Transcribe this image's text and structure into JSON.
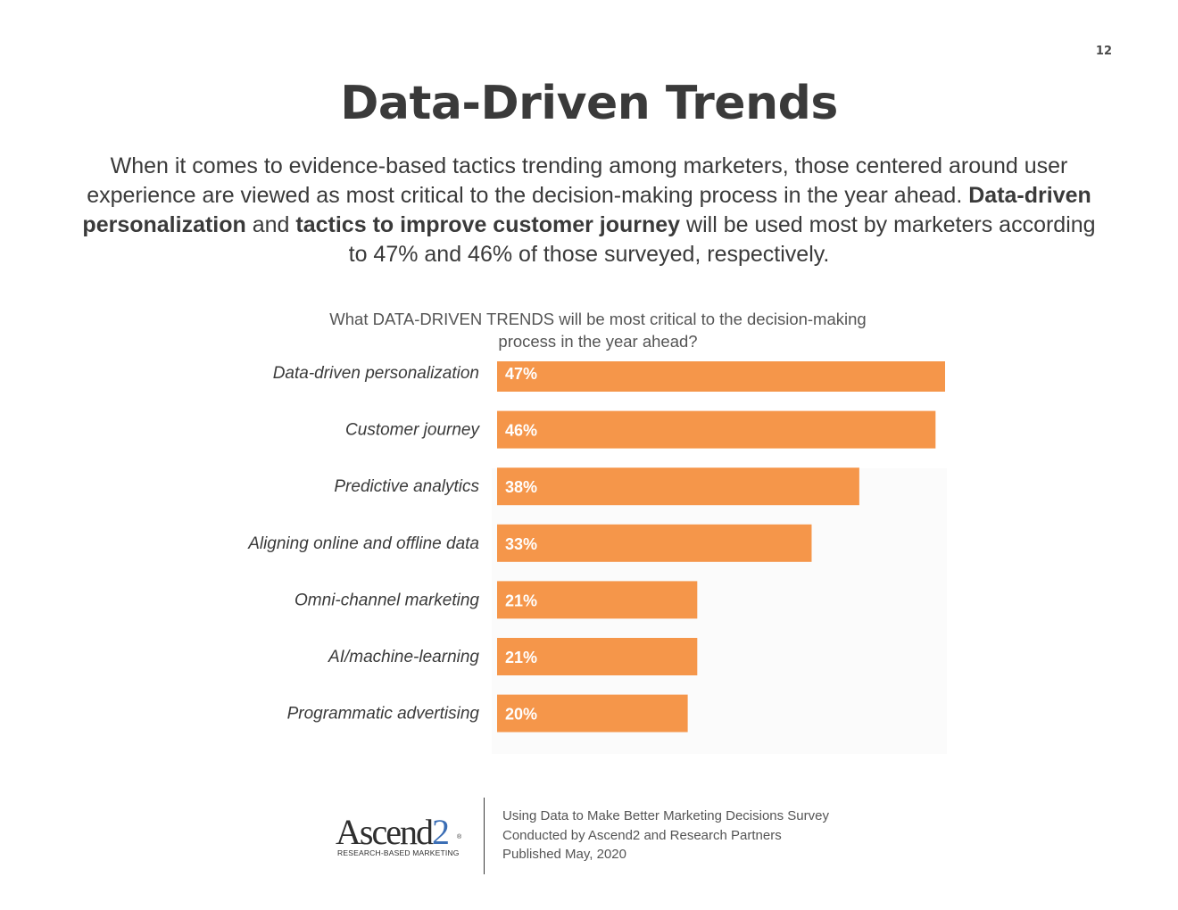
{
  "page": {
    "number": "12",
    "title": "Data-Driven Trends"
  },
  "intro": {
    "part1": "When it comes to evidence-based tactics trending among marketers, those centered around user experience are viewed as most critical to the decision-making process in the year ahead. ",
    "bold1": "Data-driven personalization",
    "part2": " and ",
    "bold2": "tactics to improve customer journey",
    "part3": " will be used most by marketers according to 47% and 46% of those surveyed, respectively."
  },
  "chart_data": {
    "type": "bar",
    "orientation": "horizontal",
    "title": "What DATA-DRIVEN TRENDS will be most critical to the decision-making process in the year ahead?",
    "categories": [
      "Data-driven personalization",
      "Customer journey",
      "Predictive analytics",
      "Aligning online and offline data",
      "Omni-channel marketing",
      "AI/machine-learning",
      "Programmatic advertising"
    ],
    "values": [
      47,
      46,
      38,
      33,
      21,
      21,
      20
    ],
    "value_labels": [
      "47%",
      "46%",
      "38%",
      "33%",
      "21%",
      "21%",
      "20%"
    ],
    "xlim": [
      0,
      47
    ],
    "bar_color": "#f5964a",
    "grid": false,
    "legend": "none"
  },
  "footer": {
    "logo_text": "Ascend2",
    "logo_mark": "®",
    "logo_tagline": "RESEARCH-BASED MARKETING",
    "line1": "Using Data to Make Better Marketing Decisions Survey",
    "line2": "Conducted  by Ascend2 and Research Partners",
    "line3": "Published May, 2020"
  },
  "colors": {
    "bar": "#f5964a",
    "text": "#3a3a3a",
    "logo_accent": "#3b6eb5"
  }
}
